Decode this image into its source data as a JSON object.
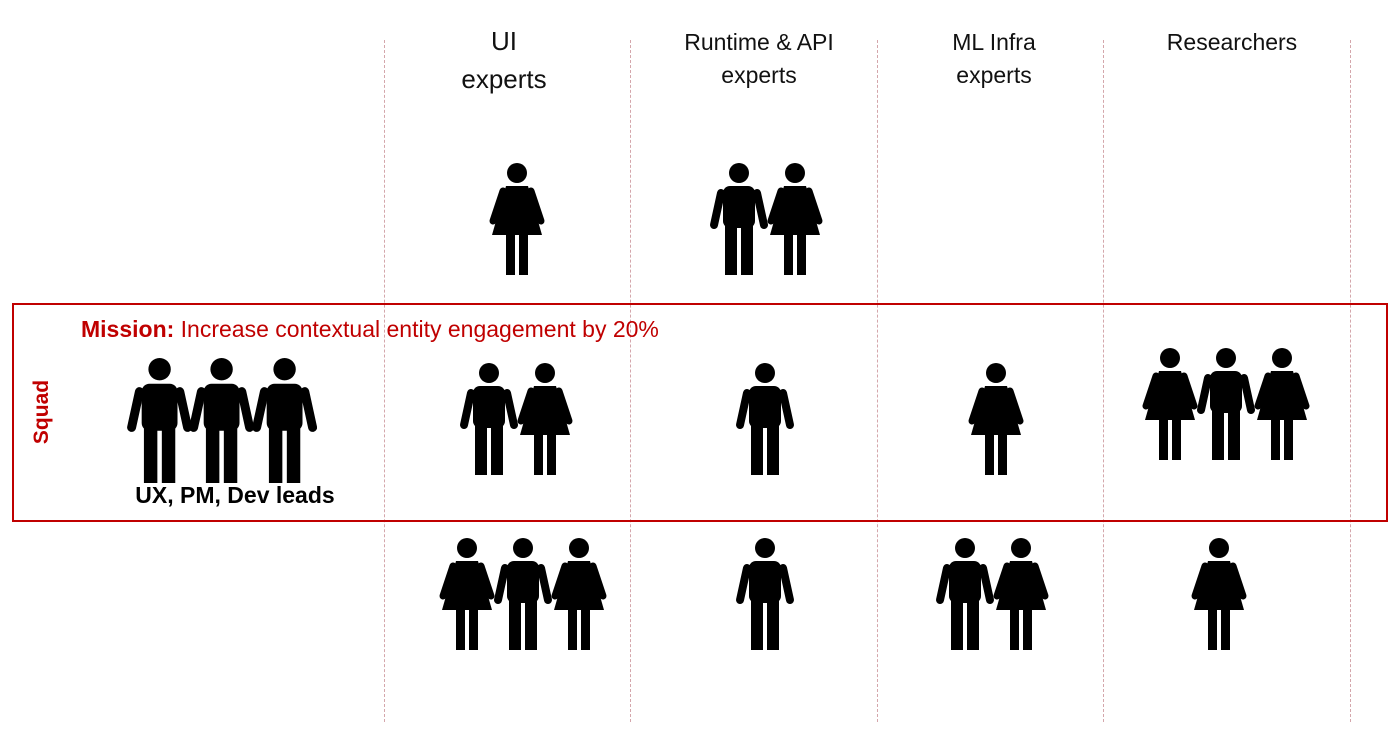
{
  "columns": [
    {
      "header_line1": "UI",
      "header_line2": "experts"
    },
    {
      "header_line1": "Runtime & API",
      "header_line2": "experts"
    },
    {
      "header_line1": "ML Infra",
      "header_line2": "experts"
    },
    {
      "header_line1": "Researchers",
      "header_line2": ""
    }
  ],
  "squad": {
    "label": "Squad",
    "mission_prefix": "Mission:",
    "mission_text": " Increase contextual entity engagement by 20%",
    "leads_label": "UX, PM, Dev leads"
  },
  "people": {
    "upper_row": {
      "ui": [
        "female"
      ],
      "runtime": [
        "male",
        "female"
      ],
      "ml_infra": [],
      "researchers": []
    },
    "squad_row": {
      "leads": [
        "male",
        "male",
        "male"
      ],
      "ui": [
        "male",
        "female"
      ],
      "runtime": [
        "male"
      ],
      "ml_infra": [
        "female"
      ],
      "researchers": [
        "female",
        "male",
        "female"
      ]
    },
    "lower_row": {
      "ui": [
        "female",
        "male",
        "female"
      ],
      "runtime": [
        "male"
      ],
      "ml_infra": [
        "male",
        "female"
      ],
      "researchers": [
        "female"
      ]
    }
  },
  "colors": {
    "accent": "#c00000",
    "figure": "#000000",
    "divider": "#d4a6ab"
  }
}
